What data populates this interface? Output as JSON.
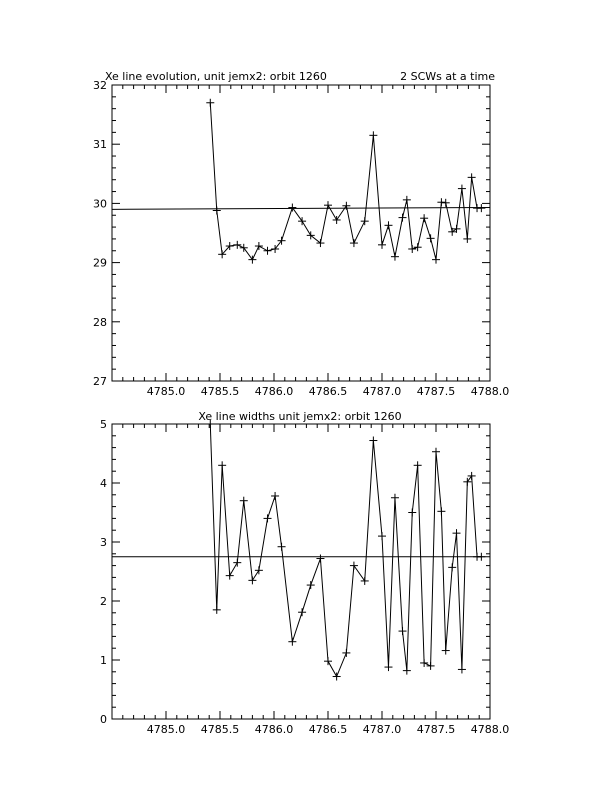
{
  "chart_data": [
    {
      "type": "line",
      "title": "Xe line evolution, unit jemx2: orbit 1260",
      "subtitle": "2 SCWs at a time",
      "xlim": [
        4784.5,
        4788.0
      ],
      "ylim": [
        27,
        32
      ],
      "xticks": [
        "4785.0",
        "4785.5",
        "4786.0",
        "4786.5",
        "4787.0",
        "4787.5",
        "4788.0"
      ],
      "yticks": [
        "27",
        "28",
        "29",
        "30",
        "31",
        "32"
      ],
      "reference_line": [
        [
          4784.5,
          29.9
        ],
        [
          4788.0,
          29.93
        ]
      ],
      "grid": false,
      "series": [
        {
          "x": [
            4785.41,
            4785.47,
            4785.52,
            4785.59,
            4785.66,
            4785.72,
            4785.8,
            4785.86,
            4785.94,
            4786.01,
            4786.07,
            4786.17,
            4786.26,
            4786.34,
            4786.43,
            4786.5,
            4786.58,
            4786.67,
            4786.74,
            4786.84,
            4786.92,
            4787.0,
            4787.06,
            4787.12,
            4787.19,
            4787.23,
            4787.28,
            4787.33,
            4787.39,
            4787.45,
            4787.5,
            4787.55,
            4787.59,
            4787.65,
            4787.69,
            4787.74,
            4787.79,
            4787.83,
            4787.88,
            4787.92
          ],
          "y": [
            31.7,
            29.88,
            29.14,
            29.28,
            29.3,
            29.25,
            29.05,
            29.28,
            29.2,
            29.23,
            29.37,
            29.93,
            29.7,
            29.46,
            29.33,
            29.97,
            29.72,
            29.96,
            29.33,
            29.7,
            31.15,
            29.3,
            29.63,
            29.1,
            29.76,
            30.06,
            29.23,
            29.26,
            29.75,
            29.41,
            29.05,
            30.02,
            30.01,
            29.52,
            29.57,
            30.25,
            29.4,
            30.44,
            29.92,
            29.92
          ]
        }
      ]
    },
    {
      "type": "line",
      "title": "Xe line widths unit jemx2: orbit 1260",
      "xlim": [
        4784.5,
        4788.0
      ],
      "ylim": [
        0,
        5
      ],
      "xticks": [
        "4785.0",
        "4785.5",
        "4786.0",
        "4786.5",
        "4787.0",
        "4787.5",
        "4788.0"
      ],
      "yticks": [
        "0",
        "1",
        "2",
        "3",
        "4",
        "5"
      ],
      "reference_line": [
        [
          4784.5,
          2.75
        ],
        [
          4788.0,
          2.75
        ]
      ],
      "grid": false,
      "series": [
        {
          "x": [
            4785.41,
            4785.47,
            4785.52,
            4785.59,
            4785.66,
            4785.72,
            4785.8,
            4785.86,
            4785.94,
            4786.01,
            4786.07,
            4786.17,
            4786.26,
            4786.34,
            4786.43,
            4786.5,
            4786.58,
            4786.67,
            4786.74,
            4786.84,
            4786.92,
            4787.0,
            4787.06,
            4787.12,
            4787.19,
            4787.23,
            4787.28,
            4787.33,
            4787.39,
            4787.45,
            4787.5,
            4787.55,
            4787.59,
            4787.65,
            4787.69,
            4787.74,
            4787.79,
            4787.83,
            4787.88,
            4787.92
          ],
          "y": [
            5.0,
            1.85,
            4.3,
            2.43,
            2.65,
            3.7,
            2.35,
            2.52,
            3.4,
            3.78,
            2.92,
            1.31,
            1.81,
            2.27,
            2.72,
            0.98,
            0.72,
            1.12,
            2.6,
            2.34,
            4.72,
            3.1,
            0.88,
            3.75,
            1.49,
            0.82,
            3.5,
            4.3,
            0.95,
            0.9,
            4.53,
            3.52,
            1.16,
            2.57,
            3.15,
            0.84,
            4.02,
            4.12,
            2.75,
            2.75
          ]
        }
      ]
    }
  ]
}
